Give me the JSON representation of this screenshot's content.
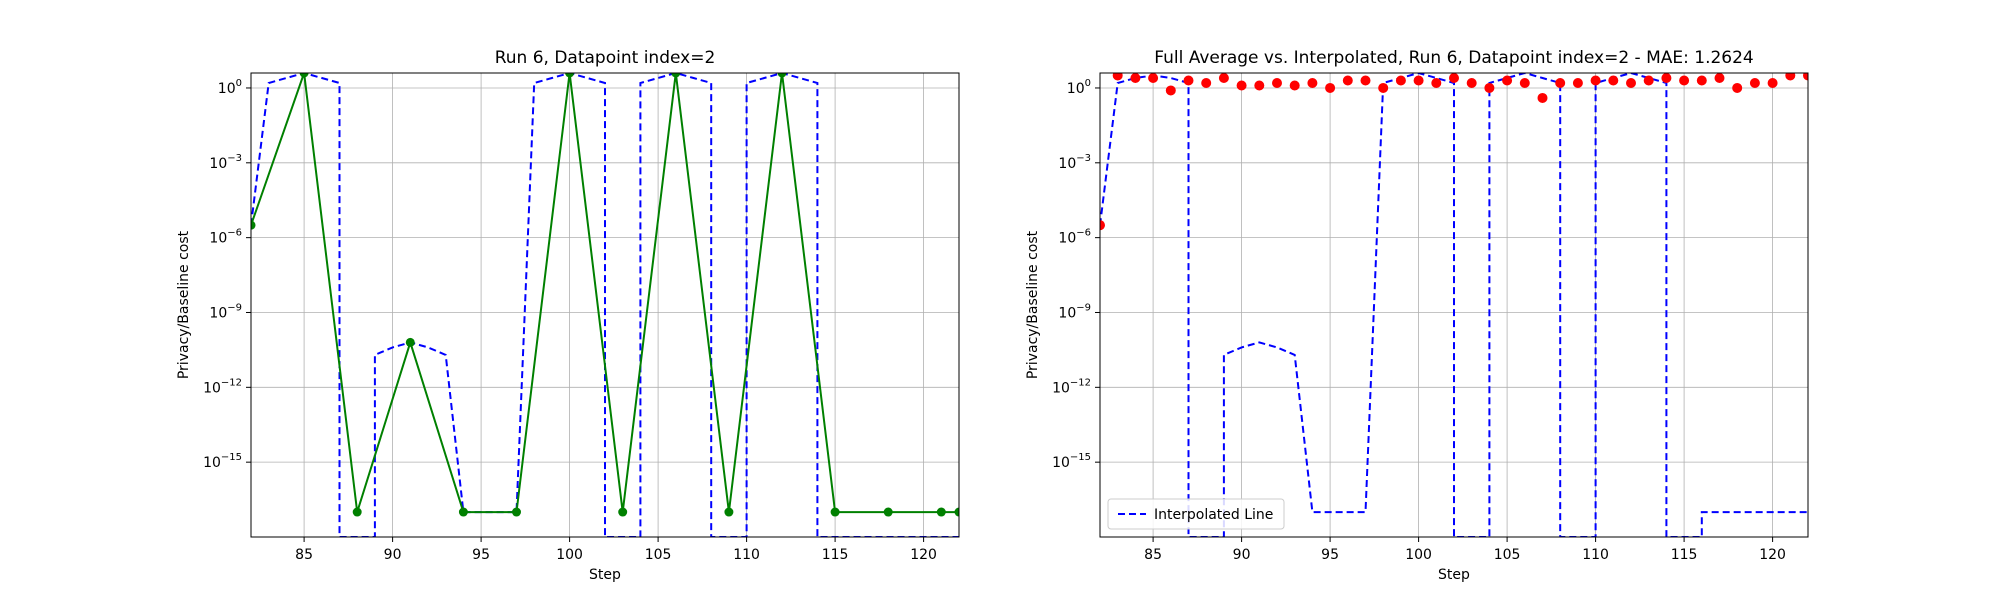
{
  "chart_data": [
    {
      "type": "line",
      "title": "Run 6, Datapoint index=2",
      "xlabel": "Step",
      "ylabel": "Privacy/Baseline cost",
      "xlim": [
        82,
        122
      ],
      "ylog_range": [
        -18,
        0.6
      ],
      "yscale": "log",
      "grid": true,
      "x_ticks": [
        85,
        90,
        95,
        100,
        105,
        110,
        115,
        120
      ],
      "y_tick_exponents": [
        0,
        -3,
        -6,
        -9,
        -12,
        -15
      ],
      "series": [
        {
          "style": "dashed",
          "color": "#0000ff",
          "points": [
            [
              82,
              -5.5
            ],
            [
              83,
              0.2
            ],
            [
              84,
              0.4
            ],
            [
              85,
              0.6
            ],
            [
              86,
              0.4
            ],
            [
              87,
              0.2
            ],
            [
              87,
              -18
            ],
            [
              89,
              -18
            ],
            [
              89,
              -10.7
            ],
            [
              90,
              -10.4
            ],
            [
              91,
              -10.2
            ],
            [
              92,
              -10.4
            ],
            [
              93,
              -10.7
            ],
            [
              94,
              -17
            ],
            [
              97,
              -17
            ],
            [
              98,
              0.2
            ],
            [
              99,
              0.4
            ],
            [
              100,
              0.6
            ],
            [
              101,
              0.4
            ],
            [
              102,
              0.2
            ],
            [
              102,
              -18
            ],
            [
              104,
              -18
            ],
            [
              104,
              0.2
            ],
            [
              105,
              0.4
            ],
            [
              106,
              0.6
            ],
            [
              107,
              0.4
            ],
            [
              108,
              0.2
            ],
            [
              108,
              -18
            ],
            [
              110,
              -18
            ],
            [
              110,
              0.2
            ],
            [
              111,
              0.4
            ],
            [
              112,
              0.6
            ],
            [
              113,
              0.4
            ],
            [
              114,
              0.2
            ],
            [
              114,
              -18
            ],
            [
              116,
              -18
            ],
            [
              122,
              -18
            ]
          ]
        },
        {
          "style": "solid-markers",
          "color": "#008000",
          "points": [
            [
              82,
              -5.5
            ],
            [
              85,
              0.6
            ],
            [
              88,
              -17
            ],
            [
              91,
              -10.2
            ],
            [
              94,
              -17
            ],
            [
              97,
              -17
            ],
            [
              100,
              0.6
            ],
            [
              103,
              -17
            ],
            [
              106,
              0.6
            ],
            [
              109,
              -17
            ],
            [
              112,
              0.6
            ],
            [
              115,
              -17
            ],
            [
              118,
              -17
            ],
            [
              121,
              -17
            ],
            [
              122,
              -17
            ]
          ]
        }
      ]
    },
    {
      "type": "line",
      "title": "Full Average vs. Interpolated, Run 6, Datapoint index=2 - MAE: 1.2624",
      "xlabel": "Step",
      "ylabel": "Privacy/Baseline cost",
      "xlim": [
        82,
        122
      ],
      "ylog_range": [
        -18,
        0.6
      ],
      "yscale": "log",
      "grid": true,
      "legend_position": "lower left",
      "x_ticks": [
        85,
        90,
        95,
        100,
        105,
        110,
        115,
        120
      ],
      "y_tick_exponents": [
        0,
        -3,
        -6,
        -9,
        -12,
        -15
      ],
      "series": [
        {
          "name": "Interpolated Line",
          "style": "dashed",
          "color": "#0000ff",
          "points": [
            [
              82,
              -5.5
            ],
            [
              83,
              0.2
            ],
            [
              84,
              0.4
            ],
            [
              85,
              0.5
            ],
            [
              86,
              0.4
            ],
            [
              87,
              0.2
            ],
            [
              87,
              -18
            ],
            [
              89,
              -18
            ],
            [
              89,
              -10.7
            ],
            [
              90,
              -10.4
            ],
            [
              91,
              -10.2
            ],
            [
              92,
              -10.4
            ],
            [
              93,
              -10.7
            ],
            [
              94,
              -17
            ],
            [
              97,
              -17
            ],
            [
              98,
              0.2
            ],
            [
              99,
              0.4
            ],
            [
              100,
              0.6
            ],
            [
              101,
              0.4
            ],
            [
              102,
              0.2
            ],
            [
              102,
              -18
            ],
            [
              104,
              -18
            ],
            [
              104,
              0.2
            ],
            [
              105,
              0.4
            ],
            [
              106,
              0.6
            ],
            [
              107,
              0.4
            ],
            [
              108,
              0.2
            ],
            [
              108,
              -18
            ],
            [
              110,
              -18
            ],
            [
              110,
              0.2
            ],
            [
              111,
              0.4
            ],
            [
              112,
              0.6
            ],
            [
              113,
              0.4
            ],
            [
              114,
              0.2
            ],
            [
              114,
              -18
            ],
            [
              116,
              -18
            ],
            [
              116,
              -17
            ],
            [
              122,
              -17
            ]
          ]
        },
        {
          "style": "scatter",
          "color": "#ff0000",
          "points": [
            [
              82,
              -5.5
            ],
            [
              83,
              0.5
            ],
            [
              84,
              0.4
            ],
            [
              85,
              0.4
            ],
            [
              86,
              -0.1
            ],
            [
              87,
              0.3
            ],
            [
              88,
              0.2
            ],
            [
              89,
              0.4
            ],
            [
              90,
              0.1
            ],
            [
              91,
              0.1
            ],
            [
              92,
              0.2
            ],
            [
              93,
              0.1
            ],
            [
              94,
              0.2
            ],
            [
              95,
              0.0
            ],
            [
              96,
              0.3
            ],
            [
              97,
              0.3
            ],
            [
              98,
              0.0
            ],
            [
              99,
              0.3
            ],
            [
              100,
              0.3
            ],
            [
              101,
              0.2
            ],
            [
              102,
              0.4
            ],
            [
              103,
              0.2
            ],
            [
              104,
              0.0
            ],
            [
              105,
              0.3
            ],
            [
              106,
              0.2
            ],
            [
              107,
              -0.4
            ],
            [
              108,
              0.2
            ],
            [
              109,
              0.2
            ],
            [
              110,
              0.3
            ],
            [
              111,
              0.3
            ],
            [
              112,
              0.2
            ],
            [
              113,
              0.3
            ],
            [
              114,
              0.4
            ],
            [
              115,
              0.3
            ],
            [
              116,
              0.3
            ],
            [
              117,
              0.4
            ],
            [
              118,
              0.0
            ],
            [
              119,
              0.2
            ],
            [
              120,
              0.2
            ],
            [
              121,
              0.5
            ],
            [
              122,
              0.5
            ]
          ]
        }
      ]
    }
  ]
}
